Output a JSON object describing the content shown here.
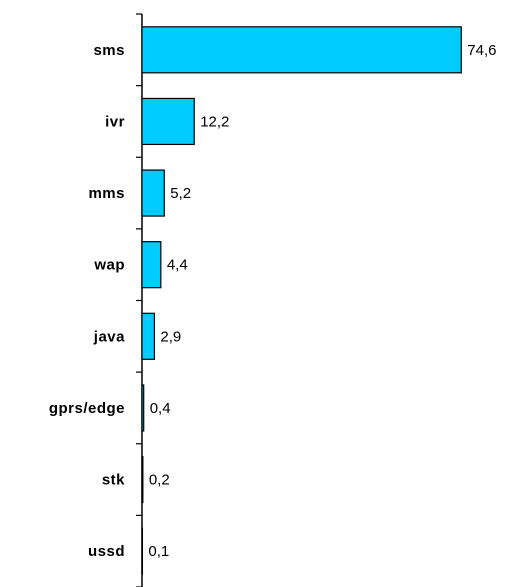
{
  "chart_data": {
    "type": "bar",
    "orientation": "horizontal",
    "categories": [
      "sms",
      "ivr",
      "mms",
      "wap",
      "java",
      "gprs/edge",
      "stk",
      "ussd"
    ],
    "values": [
      74.6,
      12.2,
      5.2,
      4.4,
      2.9,
      0.4,
      0.2,
      0.1
    ],
    "value_labels": [
      "74,6",
      "12,2",
      "5,2",
      "4,4",
      "2,9",
      "0,4",
      "0,2",
      "0,1"
    ],
    "color": "#00ccff"
  }
}
